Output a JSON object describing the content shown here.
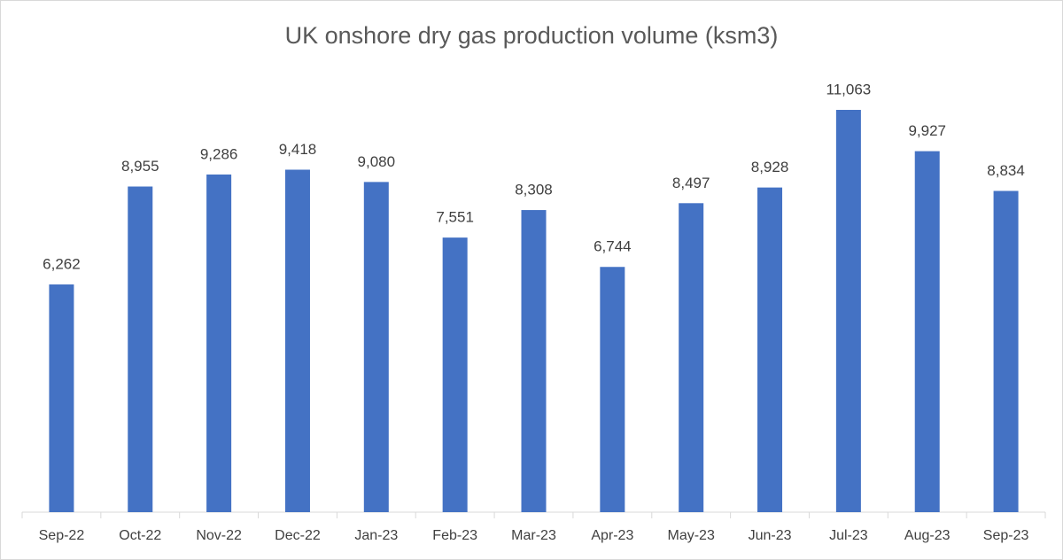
{
  "chart_data": {
    "type": "bar",
    "title": "UK onshore dry gas production volume (ksm3)",
    "categories": [
      "Sep-22",
      "Oct-22",
      "Nov-22",
      "Dec-22",
      "Jan-23",
      "Feb-23",
      "Mar-23",
      "Apr-23",
      "May-23",
      "Jun-23",
      "Jul-23",
      "Aug-23",
      "Sep-23"
    ],
    "values": [
      6262,
      8955,
      9286,
      9418,
      9080,
      7551,
      8308,
      6744,
      8497,
      8928,
      11063,
      9927,
      8834
    ],
    "value_labels": [
      "6,262",
      "8,955",
      "9,286",
      "9,418",
      "9,080",
      "7,551",
      "8,308",
      "6,744",
      "8,497",
      "8,928",
      "11,063",
      "9,927",
      "8,834"
    ],
    "color": "#4472c4"
  }
}
